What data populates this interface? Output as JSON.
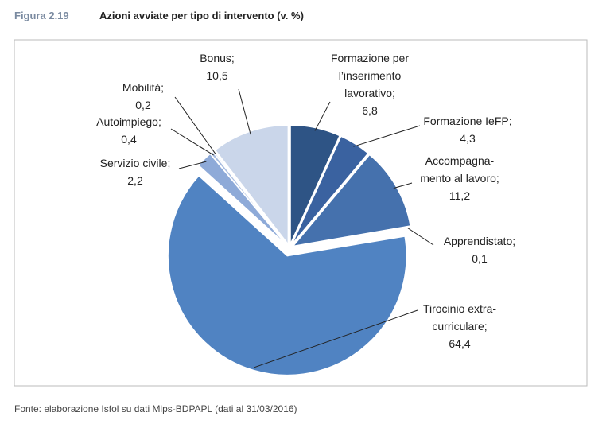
{
  "chart_data": {
    "type": "pie",
    "figure_label": "Figura 2.19",
    "title": "Azioni avviate per tipo di intervento (v. %)",
    "source": "Fonte: elaborazione Isfol su dati Mlps-BDPAPL (dati al 31/03/2016)",
    "categories": [
      "Formazione per\nl’inserimento\nlavorativo;",
      "Formazione IeFP;",
      "Accompagna-\nmento al lavoro;",
      "Apprendistato;",
      "Tirocinio extra-\ncurriculare;",
      "Servizio civile;",
      "Autoimpiego;",
      "Mobilità;",
      "Bonus;"
    ],
    "values": [
      6.8,
      4.3,
      11.2,
      0.1,
      64.4,
      2.2,
      0.4,
      0.2,
      10.5
    ],
    "value_labels": [
      "6,8",
      "4,3",
      "11,2",
      "0,1",
      "64,4",
      "2,2",
      "0,4",
      "0,2",
      "10,5"
    ],
    "colors": [
      "#2e5485",
      "#3a62a0",
      "#4571ad",
      "#4a78b5",
      "#5083c2",
      "#8eaad8",
      "#a9bde0",
      "#b9c9e6",
      "#cad6ea"
    ]
  }
}
